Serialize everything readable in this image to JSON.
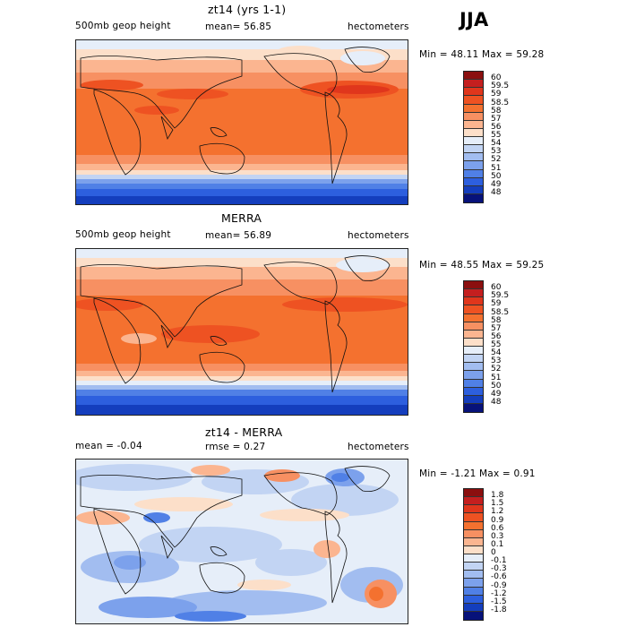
{
  "season": "JJA",
  "panels": [
    {
      "title": "zt14 (yrs 1-1)",
      "field": "500mb geop height",
      "stat": "mean=  56.85",
      "units": "hectometers",
      "min_label": "Min =",
      "min_value": "48.11",
      "max_label": "Max =",
      "max_value": "59.28",
      "colorbar_labels": [
        "60",
        "59.5",
        "59",
        "58.5",
        "58",
        "57",
        "56",
        "55",
        "54",
        "53",
        "52",
        "51",
        "50",
        "49",
        "48"
      ],
      "colorbar_colors": [
        "#8b0f0f",
        "#c41f1f",
        "#e0361c",
        "#ee5222",
        "#f4712f",
        "#f79062",
        "#fbb590",
        "#fcdfc9",
        "#e6eef9",
        "#c2d4f3",
        "#a2bdf0",
        "#7ca1ec",
        "#5080e6",
        "#2d5fde",
        "#143ebd",
        "#07127a"
      ]
    },
    {
      "title": "MERRA",
      "field": "500mb geop height",
      "stat": "mean=  56.89",
      "units": "hectometers",
      "min_label": "Min =",
      "min_value": "48.55",
      "max_label": "Max =",
      "max_value": "59.25",
      "colorbar_labels": [
        "60",
        "59.5",
        "59",
        "58.5",
        "58",
        "57",
        "56",
        "55",
        "54",
        "53",
        "52",
        "51",
        "50",
        "49",
        "48"
      ],
      "colorbar_colors": [
        "#8b0f0f",
        "#c41f1f",
        "#e0361c",
        "#ee5222",
        "#f4712f",
        "#f79062",
        "#fbb590",
        "#fcdfc9",
        "#e6eef9",
        "#c2d4f3",
        "#a2bdf0",
        "#7ca1ec",
        "#5080e6",
        "#2d5fde",
        "#143ebd",
        "#07127a"
      ]
    },
    {
      "title": "zt14 - MERRA",
      "field": "mean =   -0.04",
      "stat": "rmse =     0.27",
      "units": "hectometers",
      "min_label": "Min =",
      "min_value": "-1.21",
      "max_label": "Max =",
      "max_value": "0.91",
      "colorbar_labels": [
        "1.8",
        "1.5",
        "1.2",
        "0.9",
        "0.6",
        "0.3",
        "0.1",
        "0",
        "-0.1",
        "-0.3",
        "-0.6",
        "-0.9",
        "-1.2",
        "-1.5",
        "-1.8"
      ],
      "colorbar_colors": [
        "#8b0f0f",
        "#c41f1f",
        "#e0361c",
        "#ee5222",
        "#f4712f",
        "#f79062",
        "#fbb590",
        "#fcdfc9",
        "#e6eef9",
        "#c2d4f3",
        "#a2bdf0",
        "#7ca1ec",
        "#5080e6",
        "#2d5fde",
        "#143ebd",
        "#07127a"
      ]
    }
  ]
}
